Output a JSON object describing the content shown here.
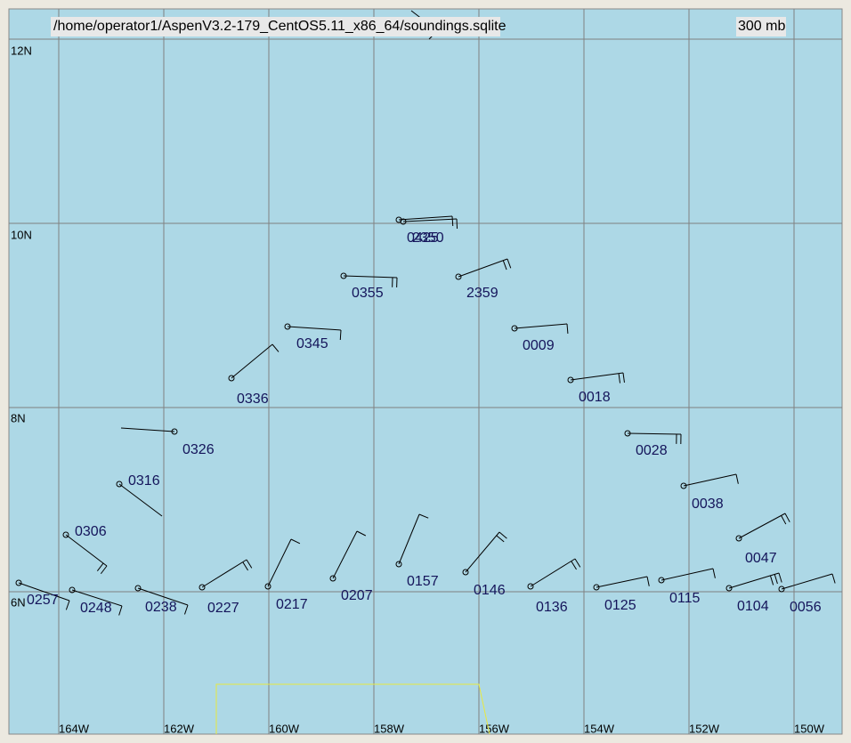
{
  "header": {
    "file_path": "/home/operator1/AspenV3.2-179_CentOS5.11_x86_64/soundings.sqlite",
    "level": "300 mb"
  },
  "latitudes": [
    "12N",
    "10N",
    "8N",
    "6N"
  ],
  "longitudes": [
    "164W",
    "162W",
    "160W",
    "158W",
    "156W",
    "154W",
    "152W",
    "150W"
  ],
  "stations": [
    "0425",
    "2350",
    "0355",
    "2359",
    "0345",
    "0009",
    "0336",
    "0018",
    "0326",
    "0028",
    "0316",
    "0038",
    "0306",
    "0047",
    "0257",
    "0248",
    "0238",
    "0227",
    "0217",
    "0207",
    "0157",
    "0146",
    "0136",
    "0125",
    "0115",
    "0104",
    "0056"
  ]
}
